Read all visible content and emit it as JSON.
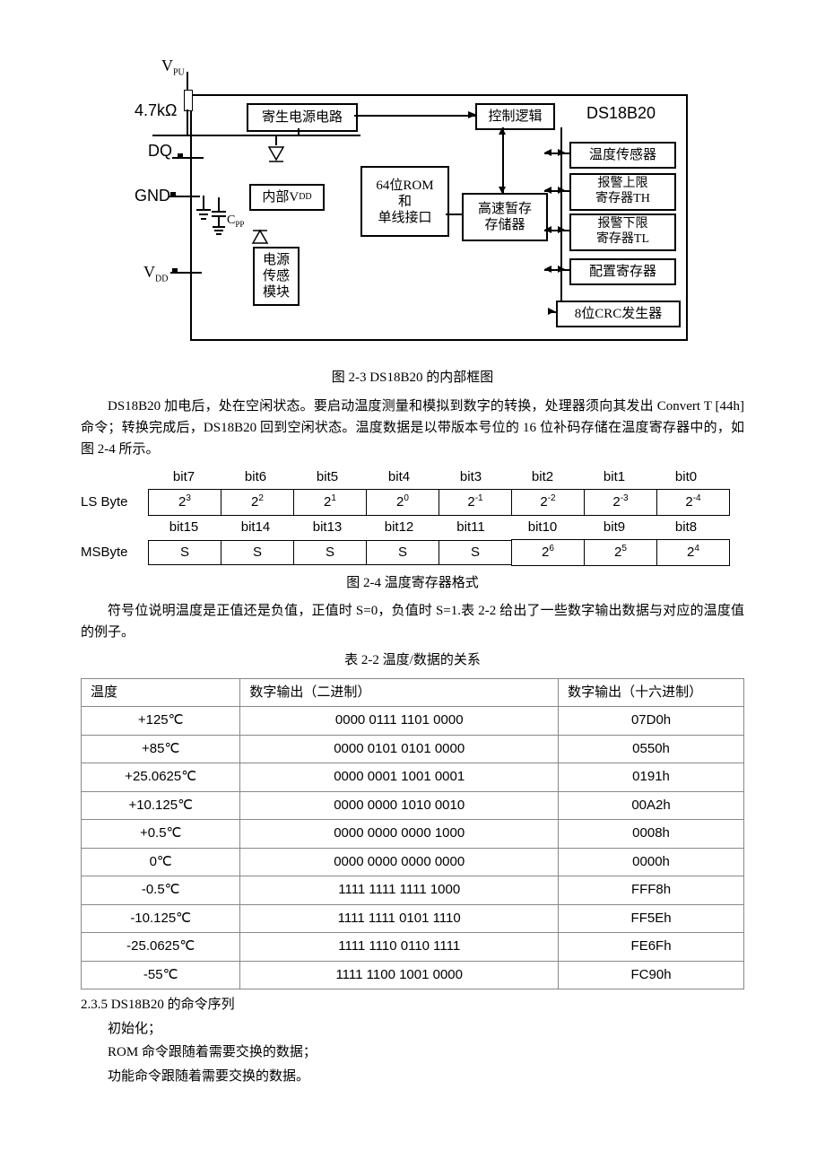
{
  "diagram": {
    "labels": {
      "vpu": "V",
      "vpu_sub": "PU",
      "resistor": "4.7kΩ",
      "dq": "DQ",
      "gnd": "GND",
      "vdd": "V",
      "vdd_sub": "DD",
      "cpp": "C",
      "cpp_sub": "PP"
    },
    "boxes": {
      "parasitic": "寄生电源电路",
      "internal_vdd_pre": "内部V",
      "internal_vdd_sub": "DD",
      "power_sense": "电源\n传感\n模块",
      "rom": "64位ROM\n和\n单线接口",
      "scratchpad": "高速暂存\n存储器",
      "control": "控制逻辑",
      "ds18b20": "DS18B20",
      "temp_sensor": "温度传感器",
      "alarm_th": "报警上限\n寄存器TH",
      "alarm_tl": "报警下限\n寄存器TL",
      "config": "配置寄存器",
      "crc": "8位CRC发生器"
    }
  },
  "caption_2_3": "图 2-3   DS18B20 的内部框图",
  "para1": "DS18B20 加电后，处在空闲状态。要启动温度测量和模拟到数字的转换，处理器须向其发出 Convert   T [44h]命令；转换完成后，DS18B20 回到空闲状态。温度数据是以带版本号位的 16 位补码存储在温度寄存器中的，如图 2-4 所示。",
  "register": {
    "header1": [
      "bit7",
      "bit6",
      "bit5",
      "bit4",
      "bit3",
      "bit2",
      "bit1",
      "bit0"
    ],
    "row1_base": "2",
    "row1_exp": [
      "3",
      "2",
      "1",
      "0",
      "-1",
      "-2",
      "-3",
      "-4"
    ],
    "label1": "LS Byte",
    "header2": [
      "bit15",
      "bit14",
      "bit13",
      "bit12",
      "bit11",
      "bit10",
      "bit9",
      "bit8"
    ],
    "row2": [
      "S",
      "S",
      "S",
      "S",
      "S"
    ],
    "row2_base": "2",
    "row2_exp": [
      "6",
      "5",
      "4"
    ],
    "label2": "MSByte"
  },
  "caption_2_4": "图 2-4   温度寄存器格式",
  "para2": "符号位说明温度是正值还是负值，正值时 S=0，负值时 S=1.表 2-2 给出了一些数字输出数据与对应的温度值的例子。",
  "caption_table_2_2": "表 2-2   温度/数据的关系",
  "table_2_2": {
    "headers": [
      "温度",
      "数字输出（二进制）",
      "数字输出（十六进制）"
    ],
    "rows": [
      [
        "+125℃",
        "0000 0111 1101 0000",
        "07D0h"
      ],
      [
        "+85℃",
        "0000 0101 0101 0000",
        "0550h"
      ],
      [
        "+25.0625℃",
        "0000 0001 1001 0001",
        "0191h"
      ],
      [
        "+10.125℃",
        "0000 0000 1010 0010",
        "00A2h"
      ],
      [
        "+0.5℃",
        "0000 0000 0000 1000",
        "0008h"
      ],
      [
        "0℃",
        "0000 0000 0000 0000",
        "0000h"
      ],
      [
        "-0.5℃",
        "1111 1111 1111 1000",
        "FFF8h"
      ],
      [
        "-10.125℃",
        "1111 1111 0101 1110",
        "FF5Eh"
      ],
      [
        "-25.0625℃",
        "1111 1110 0110 1111",
        "FE6Fh"
      ],
      [
        "-55℃",
        "1111 1100 1001 0000",
        "FC90h"
      ]
    ]
  },
  "section_2_3_5": "2.3.5   DS18B20 的命令序列",
  "sub1": "初始化；",
  "sub2": "ROM 命令跟随着需要交换的数据；",
  "sub3": "功能命令跟随着需要交换的数据。"
}
